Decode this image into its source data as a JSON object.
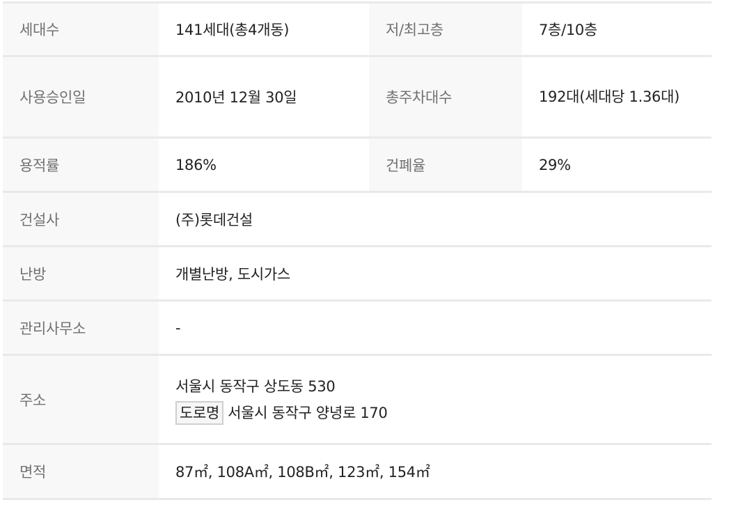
{
  "rows": [
    {
      "label": "세대수",
      "value": "141세대(총4개동)",
      "label2": "저/최고층",
      "value2": "7층/10층"
    },
    {
      "label": "사용승인일",
      "value": "2010년 12월 30일",
      "label2": "총주차대수",
      "value2": "192대(세대당 1.36대)"
    },
    {
      "label": "용적률",
      "value": "186%",
      "label2": "건폐율",
      "value2": "29%"
    },
    {
      "label": "건설사",
      "value": "(주)롯데건설"
    },
    {
      "label": "난방",
      "value": "개별난방, 도시가스"
    },
    {
      "label": "관리사무소",
      "value": "-"
    },
    {
      "label": "주소",
      "value": "서울시 동작구 상도동 530",
      "road_badge": "도로명",
      "road_address": "서울시 동작구 양녕로 170"
    },
    {
      "label": "면적",
      "value": "87㎡, 108A㎡, 108B㎡, 123㎡, 154㎡"
    }
  ]
}
